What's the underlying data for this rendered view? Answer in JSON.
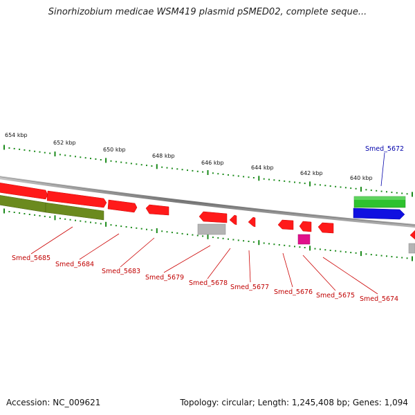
{
  "header": {
    "title": "Sinorhizobium medicae WSM419 plasmid pSMED02, complete seque..."
  },
  "footer": {
    "accession": "Accession: NC_009621",
    "summary": "Topology: circular; Length: 1,245,408 bp; Genes: 1,094"
  },
  "colors": {
    "backbone": "#8c8c8c",
    "tick": "#1a8a1a",
    "gene_red": "#ff1a1a",
    "gene_olive": "#6b8a1e",
    "gene_green": "#2ec22e",
    "gene_blue": "#1010e0",
    "gene_gray": "#b4b4b4",
    "gene_magenta": "#e0108a",
    "label_red": "#c00000",
    "label_blue": "#0000aa"
  },
  "kbp_labels": [
    "654 kbp",
    "652 kbp",
    "650 kbp",
    "648 kbp",
    "646 kbp",
    "644 kbp",
    "642 kbp",
    "640 kbp"
  ],
  "gene_labels": [
    {
      "text": "Smed_5672",
      "color": "blue"
    },
    {
      "text": "Smed_5685",
      "color": "red"
    },
    {
      "text": "Smed_5684",
      "color": "red"
    },
    {
      "text": "Smed_5683",
      "color": "red"
    },
    {
      "text": "Smed_5679",
      "color": "red"
    },
    {
      "text": "Smed_5678",
      "color": "red"
    },
    {
      "text": "Smed_5677",
      "color": "red"
    },
    {
      "text": "Smed_5676",
      "color": "red"
    },
    {
      "text": "Smed_5675",
      "color": "red"
    },
    {
      "text": "Smed_5674",
      "color": "red"
    }
  ],
  "genes": [
    {
      "track": "forward-outer",
      "color": "red"
    },
    {
      "track": "forward-outer",
      "color": "red"
    },
    {
      "track": "forward-outer",
      "color": "red"
    },
    {
      "track": "forward-outer",
      "color": "red"
    },
    {
      "track": "forward-outer",
      "color": "red"
    },
    {
      "track": "forward-outer",
      "color": "red"
    },
    {
      "track": "forward-outer",
      "color": "red"
    },
    {
      "track": "forward-outer",
      "color": "red"
    },
    {
      "track": "forward-outer",
      "color": "red"
    },
    {
      "track": "forward-outer",
      "color": "red"
    },
    {
      "track": "forward-outer",
      "color": "green"
    },
    {
      "track": "forward-inner",
      "color": "olive"
    },
    {
      "track": "forward-inner",
      "color": "olive"
    },
    {
      "track": "forward-inner",
      "color": "gray"
    },
    {
      "track": "forward-inner",
      "color": "magenta"
    },
    {
      "track": "forward-inner",
      "color": "blue"
    },
    {
      "track": "forward-inner",
      "color": "red"
    },
    {
      "track": "forward-inner",
      "color": "gray"
    }
  ]
}
